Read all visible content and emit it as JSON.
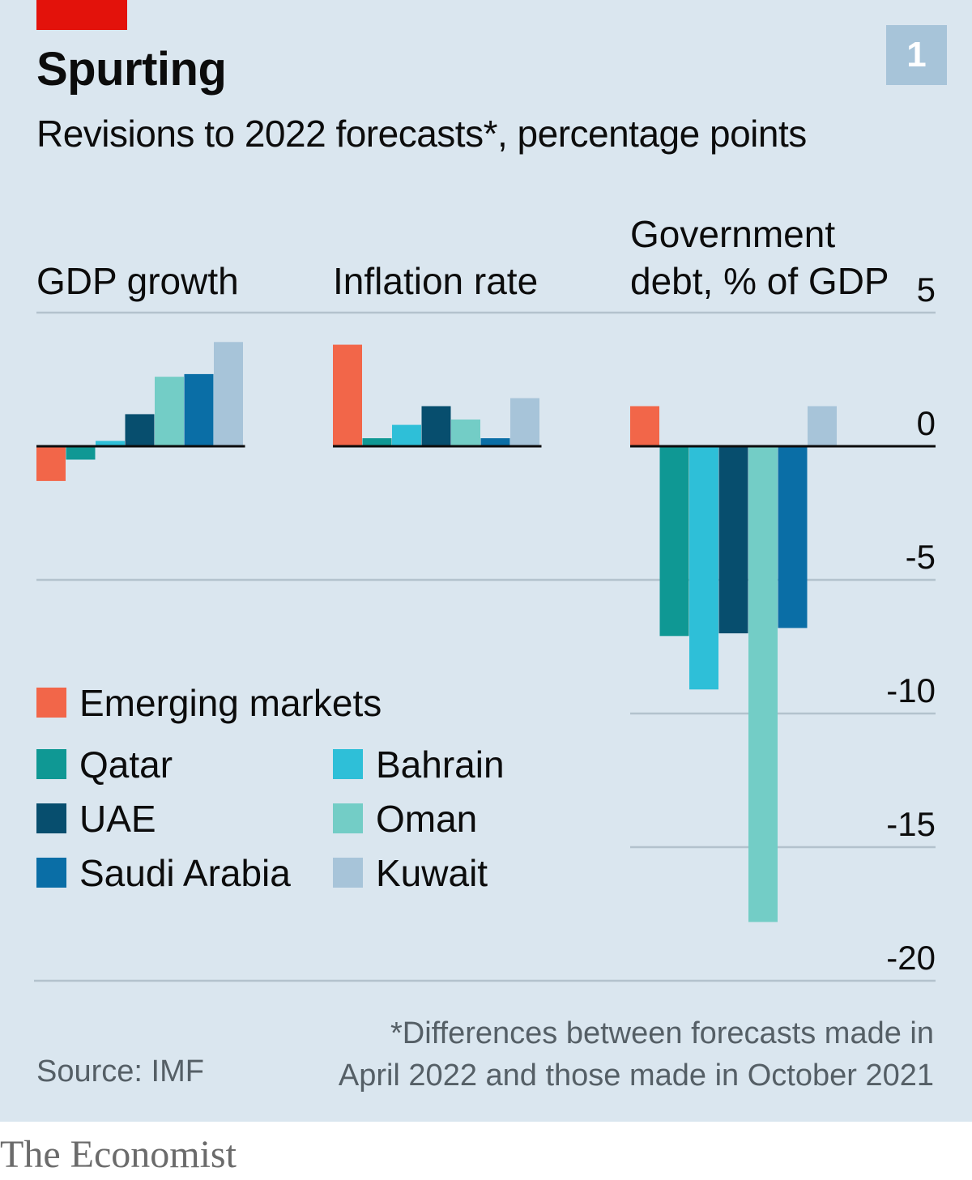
{
  "header": {
    "title": "Spurting",
    "subtitle": "Revisions to 2022 forecasts*, percentage points",
    "chart_number": "1",
    "accent_color": "#e3120b"
  },
  "chart_data": {
    "type": "bar",
    "title": "Spurting",
    "subtitle": "Revisions to 2022 forecasts*, percentage points",
    "ylim": [
      -20,
      5
    ],
    "yticks": [
      5,
      0,
      -5,
      -10,
      -15,
      -20
    ],
    "ytick_labels": [
      "5",
      "0",
      "-5",
      "-10",
      "-15",
      "-20"
    ],
    "grid": true,
    "legend_placement": "bottom-left",
    "panels": [
      {
        "title": "GDP growth",
        "values": [
          -1.3,
          -0.5,
          0.2,
          1.2,
          2.6,
          2.7,
          3.9
        ]
      },
      {
        "title": "Inflation rate",
        "values": [
          3.8,
          0.3,
          0.8,
          1.5,
          1.0,
          0.3,
          1.8
        ]
      },
      {
        "title": "Government debt, % of GDP",
        "values": [
          1.5,
          -7.1,
          -9.1,
          -7.0,
          -17.8,
          -6.8,
          1.5
        ]
      }
    ],
    "series": [
      {
        "name": "Emerging markets",
        "color": "#f26649"
      },
      {
        "name": "Qatar",
        "color": "#0f9894"
      },
      {
        "name": "Bahrain",
        "color": "#2ebfd8"
      },
      {
        "name": "UAE",
        "color": "#074e6e"
      },
      {
        "name": "Oman",
        "color": "#73cdc6"
      },
      {
        "name": "Saudi Arabia",
        "color": "#0a6ea6"
      },
      {
        "name": "Kuwait",
        "color": "#a7c4d9"
      }
    ]
  },
  "footer": {
    "source": "Source: IMF",
    "footnote": "*Differences between forecasts made in\nApril 2022 and those made in October 2021",
    "brand": "The Economist"
  }
}
